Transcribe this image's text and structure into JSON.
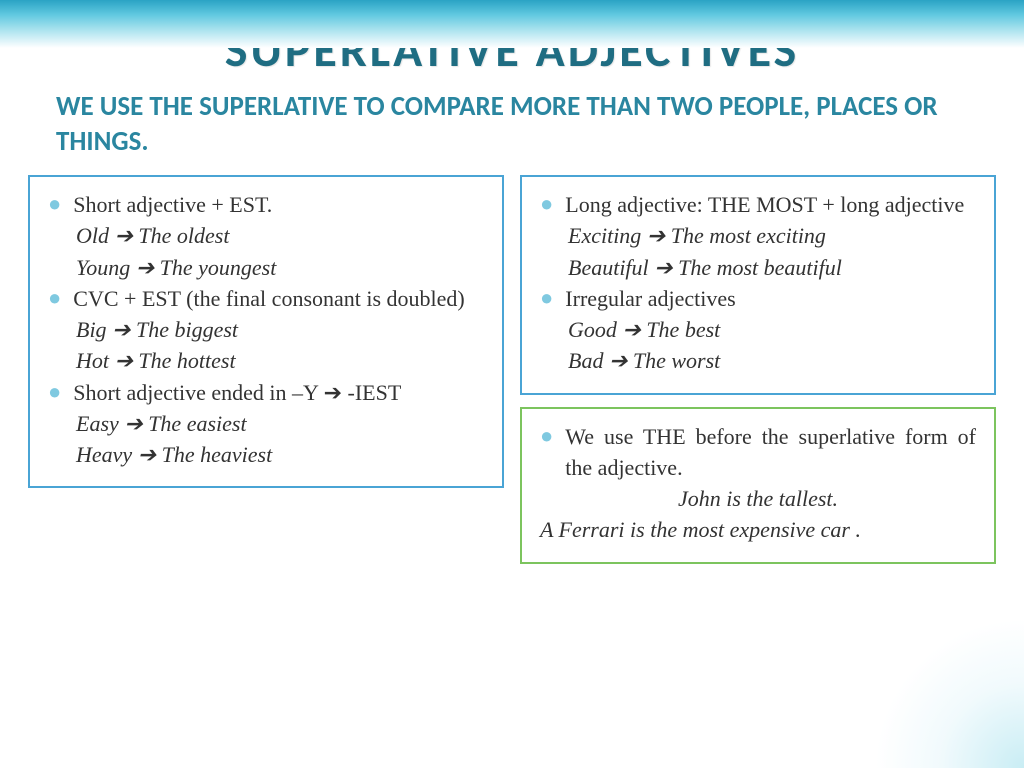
{
  "title": "SUPERLATIVE ADJECTIVES",
  "subtitle": "We use the superlative to compare more than two people, places or things.",
  "colors": {
    "title_color": "#1f6d82",
    "subtitle_color": "#2a86a0",
    "text_color": "#333333",
    "bullet_color": "#7fc9e0",
    "box_blue": "#4aa4d5",
    "box_green": "#7cc45e",
    "banner_top": "#2aa3c4",
    "background": "#ffffff"
  },
  "fonts": {
    "title_size": 48,
    "subtitle_size": 27,
    "body_size": 22,
    "title_family": "Calibri",
    "body_family": "Times New Roman"
  },
  "left_box": {
    "rule1": "Short adjective + EST.",
    "ex1": "Old ➔ The oldest",
    "ex2": "Young ➔ The youngest",
    "rule2": "CVC + EST (the final consonant is doubled)",
    "ex3": "Big ➔ The biggest",
    "ex4": "Hot ➔ The hottest",
    "rule3": "Short adjective ended in –Y ➔ -IEST",
    "ex5": "Easy ➔ The easiest",
    "ex6": "Heavy ➔ The heaviest"
  },
  "right_box1": {
    "rule1": "Long adjective: THE MOST + long adjective",
    "ex1": "Exciting ➔ The most exciting",
    "ex2": "Beautiful ➔ The most beautiful",
    "rule2": "Irregular adjectives",
    "ex3": "Good ➔ The best",
    "ex4": "Bad ➔ The worst"
  },
  "right_box2": {
    "rule1": "We use THE before the superlative form of the adjective.",
    "ex1": "John is the tallest.",
    "ex2": "A Ferrari is the most expensive car ."
  }
}
